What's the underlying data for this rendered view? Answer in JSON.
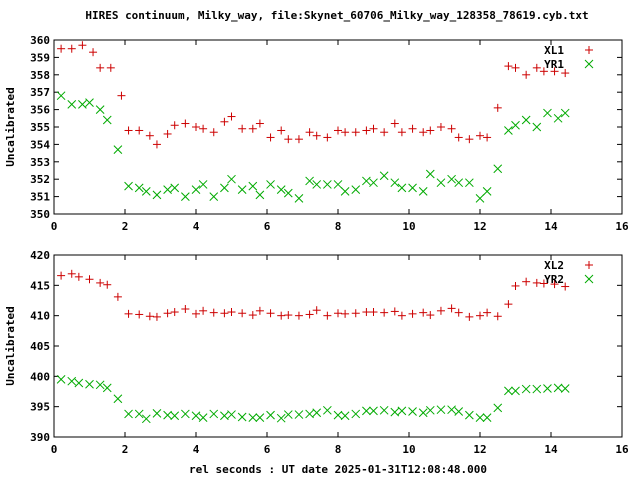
{
  "figure": {
    "title": "HIRES continuum, Milky_way, file:Skynet_60706_Milky_way_128358_78619.cyb.txt",
    "xlabel": "rel seconds : UT date 2025-01-31T12:08:48.000"
  },
  "chart_data": [
    {
      "type": "scatter",
      "title": "",
      "xlabel": "",
      "ylabel": "Uncalibrated",
      "xlim": [
        0,
        16
      ],
      "ylim": [
        350,
        360
      ],
      "xticks": [
        0,
        2,
        4,
        6,
        8,
        10,
        12,
        14,
        16
      ],
      "yticks": [
        350,
        351,
        352,
        353,
        354,
        355,
        356,
        357,
        358,
        359,
        360
      ],
      "grid": false,
      "legend": "top-right",
      "series": [
        {
          "name": "XL1",
          "color": "#cc0000",
          "marker": "plus",
          "x": [
            0.2,
            0.5,
            0.8,
            1.1,
            1.3,
            1.6,
            1.9,
            2.1,
            2.4,
            2.7,
            2.9,
            3.2,
            3.4,
            3.7,
            4.0,
            4.2,
            4.5,
            4.8,
            5.0,
            5.3,
            5.6,
            5.8,
            6.1,
            6.4,
            6.6,
            6.9,
            7.2,
            7.4,
            7.7,
            8.0,
            8.2,
            8.5,
            8.8,
            9.0,
            9.3,
            9.6,
            9.8,
            10.1,
            10.4,
            10.6,
            10.9,
            11.2,
            11.4,
            11.7,
            12.0,
            12.2,
            12.5,
            12.8,
            13.0,
            13.3,
            13.6,
            13.8,
            14.1,
            14.4
          ],
          "y": [
            359.5,
            359.5,
            359.7,
            359.3,
            358.4,
            358.4,
            356.8,
            354.8,
            354.8,
            354.5,
            354.0,
            354.6,
            355.1,
            355.2,
            355.0,
            354.9,
            354.7,
            355.3,
            355.6,
            354.9,
            354.9,
            355.2,
            354.4,
            354.8,
            354.3,
            354.3,
            354.7,
            354.5,
            354.4,
            354.8,
            354.7,
            354.7,
            354.8,
            354.9,
            354.7,
            355.2,
            354.7,
            354.9,
            354.7,
            354.8,
            355.0,
            354.9,
            354.4,
            354.3,
            354.5,
            354.4,
            356.1,
            358.5,
            358.4,
            358.0,
            358.4,
            358.2,
            358.2,
            358.1
          ]
        },
        {
          "name": "YR1",
          "color": "#00aa00",
          "marker": "cross",
          "x": [
            0.2,
            0.5,
            0.8,
            1.0,
            1.3,
            1.5,
            1.8,
            2.1,
            2.4,
            2.6,
            2.9,
            3.2,
            3.4,
            3.7,
            4.0,
            4.2,
            4.5,
            4.8,
            5.0,
            5.3,
            5.6,
            5.8,
            6.1,
            6.4,
            6.6,
            6.9,
            7.2,
            7.4,
            7.7,
            8.0,
            8.2,
            8.5,
            8.8,
            9.0,
            9.3,
            9.6,
            9.8,
            10.1,
            10.4,
            10.6,
            10.9,
            11.2,
            11.4,
            11.7,
            12.0,
            12.2,
            12.5,
            12.8,
            13.0,
            13.3,
            13.6,
            13.9,
            14.2,
            14.4
          ],
          "y": [
            356.8,
            356.3,
            356.3,
            356.4,
            356.0,
            355.4,
            353.7,
            351.6,
            351.5,
            351.3,
            351.1,
            351.4,
            351.5,
            351.0,
            351.4,
            351.7,
            351.0,
            351.5,
            352.0,
            351.4,
            351.6,
            351.1,
            351.7,
            351.4,
            351.2,
            350.9,
            351.9,
            351.7,
            351.7,
            351.7,
            351.3,
            351.4,
            351.9,
            351.8,
            352.2,
            351.8,
            351.5,
            351.5,
            351.3,
            352.3,
            351.8,
            352.0,
            351.8,
            351.8,
            350.9,
            351.3,
            352.6,
            354.8,
            355.1,
            355.4,
            355.0,
            355.8,
            355.5,
            355.8
          ]
        }
      ]
    },
    {
      "type": "scatter",
      "title": "",
      "xlabel": "",
      "ylabel": "Uncalibrated",
      "xlim": [
        0,
        16
      ],
      "ylim": [
        390,
        420
      ],
      "xticks": [
        0,
        2,
        4,
        6,
        8,
        10,
        12,
        14,
        16
      ],
      "yticks": [
        390,
        395,
        400,
        405,
        410,
        415,
        420
      ],
      "grid": false,
      "legend": "top-right",
      "series": [
        {
          "name": "XL2",
          "color": "#cc0000",
          "marker": "plus",
          "x": [
            0.2,
            0.5,
            0.7,
            1.0,
            1.3,
            1.5,
            1.8,
            2.1,
            2.4,
            2.7,
            2.9,
            3.2,
            3.4,
            3.7,
            4.0,
            4.2,
            4.5,
            4.8,
            5.0,
            5.3,
            5.6,
            5.8,
            6.1,
            6.4,
            6.6,
            6.9,
            7.2,
            7.4,
            7.7,
            8.0,
            8.2,
            8.5,
            8.8,
            9.0,
            9.3,
            9.6,
            9.8,
            10.1,
            10.4,
            10.6,
            10.9,
            11.2,
            11.4,
            11.7,
            12.0,
            12.2,
            12.5,
            12.8,
            13.0,
            13.3,
            13.6,
            13.8,
            14.1,
            14.4
          ],
          "y": [
            416.6,
            416.9,
            416.4,
            416.0,
            415.4,
            415.1,
            413.1,
            410.3,
            410.2,
            409.9,
            409.8,
            410.4,
            410.6,
            411.1,
            410.3,
            410.8,
            410.5,
            410.4,
            410.6,
            410.4,
            410.1,
            410.8,
            410.4,
            410.0,
            410.1,
            410.0,
            410.2,
            410.9,
            410.0,
            410.4,
            410.3,
            410.4,
            410.6,
            410.6,
            410.5,
            410.7,
            410.0,
            410.3,
            410.5,
            410.1,
            410.8,
            411.2,
            410.5,
            409.8,
            410.0,
            410.5,
            409.9,
            411.9,
            414.9,
            415.6,
            415.4,
            415.3,
            415.2,
            414.8
          ]
        },
        {
          "name": "YR2",
          "color": "#00aa00",
          "marker": "cross",
          "x": [
            0.2,
            0.5,
            0.7,
            1.0,
            1.3,
            1.5,
            1.8,
            2.1,
            2.4,
            2.6,
            2.9,
            3.2,
            3.4,
            3.7,
            4.0,
            4.2,
            4.5,
            4.8,
            5.0,
            5.3,
            5.6,
            5.8,
            6.1,
            6.4,
            6.6,
            6.9,
            7.2,
            7.4,
            7.7,
            8.0,
            8.2,
            8.5,
            8.8,
            9.0,
            9.3,
            9.6,
            9.8,
            10.1,
            10.4,
            10.6,
            10.9,
            11.2,
            11.4,
            11.7,
            12.0,
            12.2,
            12.5,
            12.8,
            13.0,
            13.3,
            13.6,
            13.9,
            14.2,
            14.4
          ],
          "y": [
            399.5,
            399.2,
            398.9,
            398.7,
            398.6,
            398.1,
            396.3,
            393.8,
            393.8,
            393.0,
            393.9,
            393.6,
            393.5,
            393.8,
            393.5,
            393.2,
            393.8,
            393.5,
            393.7,
            393.3,
            393.2,
            393.2,
            393.6,
            393.1,
            393.7,
            393.7,
            393.8,
            394.0,
            394.4,
            393.6,
            393.5,
            393.8,
            394.3,
            394.3,
            394.4,
            394.1,
            394.3,
            394.2,
            394.0,
            394.4,
            394.5,
            394.5,
            394.2,
            393.6,
            393.2,
            393.2,
            394.8,
            397.6,
            397.6,
            397.9,
            397.9,
            398.0,
            398.1,
            398.0
          ]
        }
      ]
    }
  ]
}
